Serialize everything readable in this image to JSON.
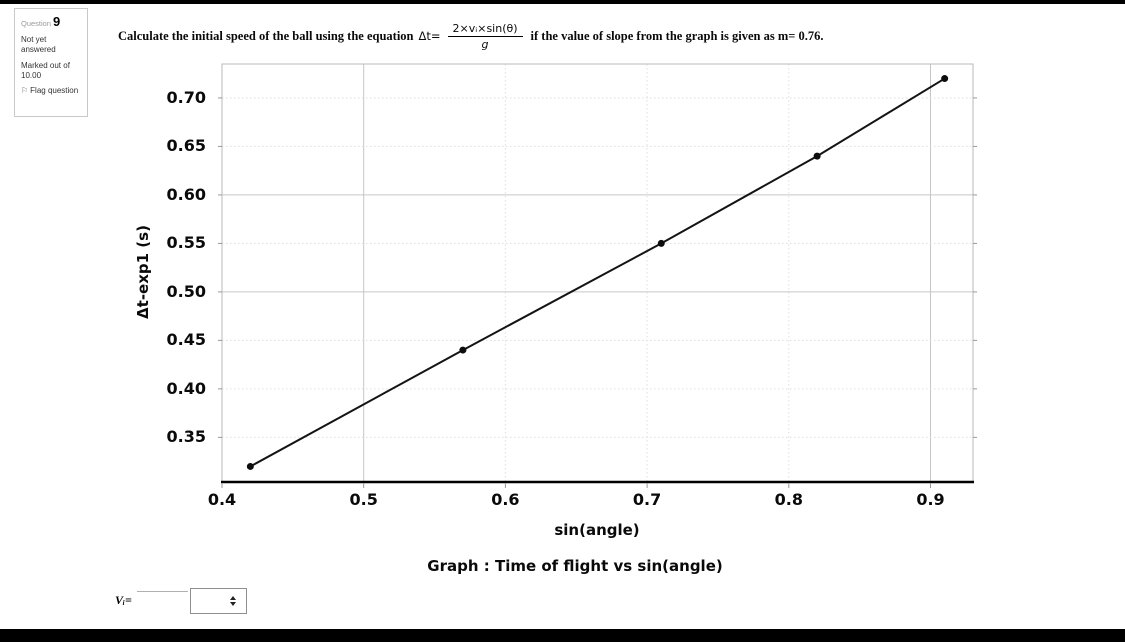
{
  "sidebar": {
    "question_label": "Question",
    "question_number": "9",
    "status": "Not yet answered",
    "marked_out_of": "Marked out of 10.00",
    "flag_label": "Flag question"
  },
  "question": {
    "text_before": "Calculate the initial speed of the ball using the equation",
    "formula_lhs": "Δt=",
    "formula_numerator": "2×vᵢ×sin(θ)",
    "formula_denominator": "g",
    "text_after": "if the value of slope from the graph is given as m= 0.76."
  },
  "chart_data": {
    "type": "line",
    "title": "Graph : Time of flight vs sin(angle)",
    "xlabel": "sin(angle)",
    "ylabel": "Δt-exp1 (s)",
    "x": [
      0.42,
      0.57,
      0.71,
      0.82,
      0.91
    ],
    "y": [
      0.32,
      0.44,
      0.55,
      0.64,
      0.72
    ],
    "xlim": [
      0.4,
      0.93
    ],
    "ylim": [
      0.305,
      0.735
    ],
    "xticks": [
      0.4,
      0.5,
      0.6,
      0.7,
      0.8,
      0.9
    ],
    "xtick_labels": [
      "0.4",
      "0.5",
      "0.6",
      "0.7",
      "0.8",
      "0.9"
    ],
    "yticks": [
      0.35,
      0.4,
      0.45,
      0.5,
      0.55,
      0.6,
      0.65,
      0.7
    ],
    "ytick_labels": [
      "0.35",
      "0.40",
      "0.45",
      "0.50",
      "0.55",
      "0.60",
      "0.65",
      "0.70"
    ],
    "grid": true,
    "legend": "none",
    "major_vertical_gridlines": [
      0.5,
      0.9
    ],
    "major_horizontal_gridlines": [
      0.5,
      0.6
    ],
    "slope_annotation": "m= 0.76",
    "colors": {
      "line": "#141414",
      "point": "#0d0d0d",
      "grid_minor": "#dedede",
      "grid_major": "#c6c6c6",
      "plot_border": "#b8b8b8",
      "axis": "#000000"
    }
  },
  "answer": {
    "label": "Vᵢ=",
    "input_value": "",
    "select_value": ""
  }
}
